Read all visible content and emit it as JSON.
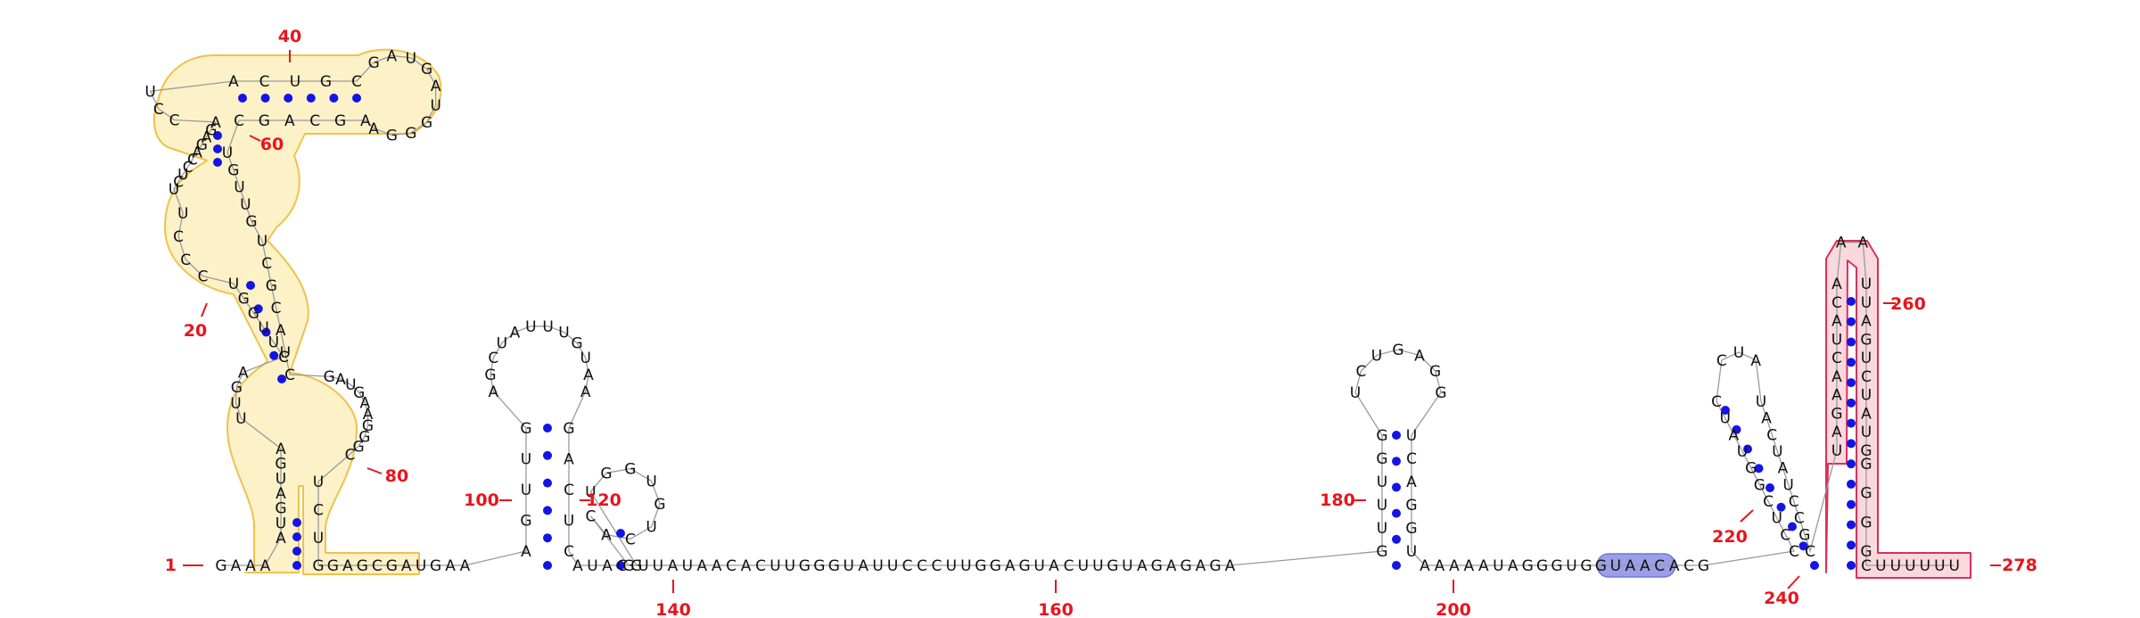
{
  "colors": {
    "nucleotide": "#111111",
    "backbone": "#9a9a9a",
    "base_pair": "#1414e6",
    "position_number": "#e8141c",
    "yellow_fill": "#fdf1c8",
    "yellow_stroke": "#efc24a",
    "pink_fill": "#fbd8dd",
    "pink_stroke": "#d9315a",
    "blue_fill": "#9c9fe6",
    "blue_stroke": "#7276d8"
  },
  "numbers": [
    {
      "label": "1",
      "at": 1
    },
    {
      "label": "20",
      "at": 20
    },
    {
      "label": "40",
      "at": 40
    },
    {
      "label": "60",
      "at": 60
    },
    {
      "label": "80",
      "at": 80
    },
    {
      "label": "100",
      "at": 100
    },
    {
      "label": "120",
      "at": 120
    },
    {
      "label": "140",
      "at": 140
    },
    {
      "label": "160",
      "at": 160
    },
    {
      "label": "180",
      "at": 180
    },
    {
      "label": "200",
      "at": 200
    },
    {
      "label": "220",
      "at": 220
    },
    {
      "label": "240",
      "at": 240
    },
    {
      "label": "260",
      "at": 260
    },
    {
      "label": "278",
      "at": 278
    }
  ],
  "sequence": {
    "seg_5prime": "GAAA",
    "h1_left_upper": "AUGAUGA",
    "h1_left_loop": "UUGA",
    "h2_left_lower": "CUUGGU",
    "h2_loop_left": "CCCU",
    "h3_left_upper": "UCUCCAGAGA",
    "h3_stem_5": "ACUGC",
    "h3_loop": "GAUGAUGGGA",
    "h3_stem_3": "AGCAGC",
    "h2_loop_right": "UGUUGUCGCAUC",
    "h1_loop_right": "GAUGAAGGGC",
    "h1_right_lower": "UCU",
    "linker_a": "GGAGCGAUGAA",
    "hp1_stem_5": "AGUUG",
    "hp1_loop": "AGCUAUUUGUAA",
    "hp1_stem_3": "GACUC",
    "linker_b": "AUACG",
    "hp2": "UGGUGUCAC",
    "tail_long": "GUUAUAACACUUGGGUAUUCCCUUGGAGUACUUGUAGAGAGA",
    "hp3_stem_5": "GUUUGG",
    "hp3_loop": "UCUGAGG",
    "hp3_stem_3": "UCAGGU",
    "linker_c": "AAAAAUAGGGUGGUAACACG",
    "hp4_stem_5": "CCUCGGUAUC",
    "hp4_loop": "CUA",
    "hp4_stem_3": "UACUAUCCGC",
    "hp5_stem_5": "UAGAACUACA",
    "hp5_loop": "AA",
    "hp5_stem_3": "UUAGUCUAUG",
    "hp5_close": "GGGG",
    "seg_3prime": "CUUUUUU"
  }
}
